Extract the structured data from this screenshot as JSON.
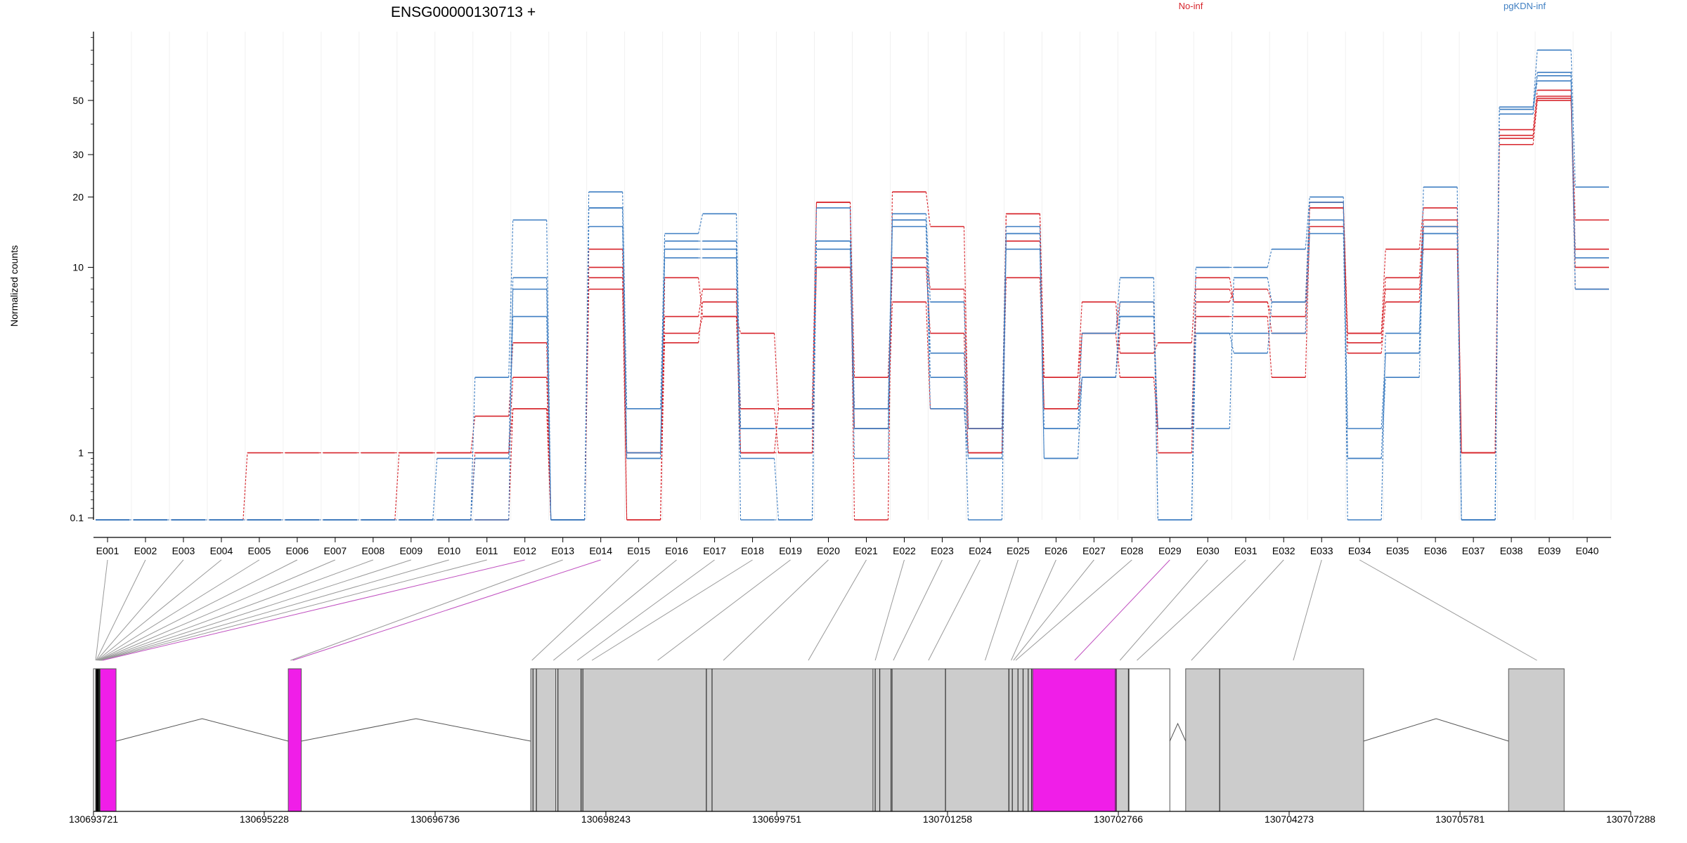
{
  "chart_data": {
    "type": "line",
    "title": "ENSG00000130713 +",
    "ylabel": "Normalized counts",
    "y_scale": "log1p",
    "y_ticks": [
      0.1,
      1,
      10,
      20,
      30,
      50
    ],
    "ylim": [
      0.08,
      95
    ],
    "categories": [
      "E001",
      "E002",
      "E003",
      "E004",
      "E005",
      "E006",
      "E007",
      "E008",
      "E009",
      "E010",
      "E011",
      "E012",
      "E013",
      "E014",
      "E015",
      "E016",
      "E017",
      "E018",
      "E019",
      "E020",
      "E021",
      "E022",
      "E023",
      "E024",
      "E025",
      "E026",
      "E027",
      "E028",
      "E029",
      "E030",
      "E031",
      "E032",
      "E033",
      "E034",
      "E035",
      "E036",
      "E037",
      "E038",
      "E039",
      "E040"
    ],
    "colors": {
      "No-inf": "#d7242b",
      "pgKDN-inf": "#3e7ec2"
    },
    "legend": [
      {
        "name": "No-inf",
        "color": "#d7242b",
        "position": "top-center"
      },
      {
        "name": "pgKDN-inf",
        "color": "#3e7ec2",
        "position": "top-right"
      }
    ],
    "series": [
      {
        "group": "No-inf",
        "values": [
          0.08,
          0.08,
          0.08,
          0.08,
          1,
          1,
          1,
          1,
          1,
          1,
          1.8,
          4.5,
          0.08,
          12,
          0.08,
          5,
          6,
          5,
          2,
          19,
          0.08,
          21,
          15,
          1.5,
          17,
          3,
          7,
          4,
          4.5,
          9,
          7,
          5,
          19,
          5,
          12,
          18,
          1,
          33,
          50,
          16
        ]
      },
      {
        "group": "No-inf",
        "values": [
          0.08,
          0.08,
          0.08,
          0.08,
          0.08,
          0.08,
          0.08,
          0.08,
          1,
          1,
          1,
          2,
          0.08,
          10,
          1,
          4.5,
          7,
          2,
          1,
          19,
          3,
          11,
          8,
          1.5,
          13,
          2,
          5,
          7,
          1,
          7,
          8,
          7,
          18,
          4.5,
          9,
          16,
          1,
          35,
          51,
          12
        ]
      },
      {
        "group": "No-inf",
        "values": [
          0.08,
          0.08,
          0.08,
          0.08,
          0.08,
          0.08,
          0.08,
          0.08,
          0.08,
          0.08,
          1,
          3,
          0.08,
          9,
          1,
          6,
          8,
          1,
          2,
          10,
          2,
          10,
          5,
          1,
          9,
          2,
          3,
          5,
          1.5,
          8,
          7,
          6,
          18,
          4,
          7,
          15,
          1,
          36,
          52,
          10
        ]
      },
      {
        "group": "No-inf",
        "values": [
          0.08,
          0.08,
          0.08,
          0.08,
          0.08,
          0.08,
          0.08,
          0.08,
          0.08,
          0.08,
          0.08,
          2,
          0.08,
          8,
          0.08,
          9,
          6,
          1,
          1,
          10,
          1.5,
          7,
          2,
          1,
          17,
          3,
          5,
          3,
          1.5,
          6,
          6,
          3,
          15,
          5,
          8,
          12,
          1,
          38,
          55,
          8
        ]
      },
      {
        "group": "pgKDN-inf",
        "values": [
          0.08,
          0.08,
          0.08,
          0.08,
          0.08,
          0.08,
          0.08,
          0.08,
          0.08,
          0.08,
          3,
          16,
          0.08,
          21,
          2,
          14,
          17,
          1.5,
          1.5,
          18,
          2,
          17,
          7,
          1.5,
          15,
          1.5,
          5,
          9,
          0.08,
          10,
          10,
          12,
          20,
          1.5,
          4,
          22,
          0.08,
          47,
          80,
          22
        ]
      },
      {
        "group": "pgKDN-inf",
        "values": [
          0.08,
          0.08,
          0.08,
          0.08,
          0.08,
          0.08,
          0.08,
          0.08,
          0.08,
          0.9,
          0.9,
          9,
          0.08,
          18,
          0.9,
          13,
          13,
          0.9,
          0.08,
          12,
          0.9,
          16,
          4,
          0.9,
          14,
          0.9,
          3,
          7,
          0.08,
          5,
          4,
          7,
          16,
          0.9,
          3,
          15,
          0.08,
          46,
          60,
          11
        ]
      },
      {
        "group": "pgKDN-inf",
        "values": [
          0.08,
          0.08,
          0.08,
          0.08,
          0.08,
          0.08,
          0.08,
          0.08,
          0.08,
          0.08,
          0.08,
          8,
          0.08,
          18,
          1,
          12,
          12,
          1.5,
          1.5,
          13,
          1.5,
          16,
          3,
          0.08,
          14,
          1.5,
          3,
          6,
          1.5,
          1.5,
          9,
          7,
          19,
          0.08,
          5,
          14,
          0.08,
          46,
          65,
          8
        ]
      },
      {
        "group": "pgKDN-inf",
        "values": [
          0.08,
          0.08,
          0.08,
          0.08,
          0.08,
          0.08,
          0.08,
          0.08,
          0.08,
          0.08,
          0.9,
          6,
          0.08,
          15,
          0.9,
          11,
          11,
          0.08,
          0.08,
          13,
          1.5,
          15,
          2,
          0.9,
          12,
          0.9,
          3,
          6,
          1.5,
          5,
          5,
          5,
          14,
          0.9,
          4,
          14,
          0.08,
          44,
          63,
          8
        ]
      }
    ],
    "genome_axis": {
      "ticks": [
        "130693721",
        "130695228",
        "130696736",
        "130698243",
        "130699751",
        "130701258",
        "130702766",
        "130704273",
        "130705781",
        "130707288"
      ],
      "tick_values": [
        130693721,
        130695228,
        130696736,
        130698243,
        130699751,
        130701258,
        130702766,
        130704273,
        130705781,
        130707288
      ],
      "exons": [
        {
          "start": 130693721,
          "end": 130693740,
          "fill": "#ffffff"
        },
        {
          "start": 130693740,
          "end": 130693780,
          "fill": "#000000"
        },
        {
          "start": 130693780,
          "end": 130693920,
          "fill": "#f01ee8"
        },
        {
          "start": 130695440,
          "end": 130695555,
          "fill": "#f01ee8"
        },
        {
          "start": 130697580,
          "end": 130697800,
          "fill": "#cccccc"
        },
        {
          "start": 130697800,
          "end": 130698024,
          "fill": "#cccccc"
        },
        {
          "start": 130698024,
          "end": 130699130,
          "fill": "#cccccc"
        },
        {
          "start": 130699130,
          "end": 130700600,
          "fill": "#cccccc"
        },
        {
          "start": 130700600,
          "end": 130700770,
          "fill": "#cccccc"
        },
        {
          "start": 130700770,
          "end": 130701240,
          "fill": "#cccccc"
        },
        {
          "start": 130701240,
          "end": 130701800,
          "fill": "#cccccc"
        },
        {
          "start": 130701800,
          "end": 130702010,
          "fill": "#cccccc"
        },
        {
          "start": 130702010,
          "end": 130702750,
          "fill": "#f01ee8"
        },
        {
          "start": 130702750,
          "end": 130702860,
          "fill": "#cccccc"
        },
        {
          "start": 130702860,
          "end": 130703220,
          "fill": "#ffffff"
        },
        {
          "start": 130703360,
          "end": 130703660,
          "fill": "#cccccc"
        },
        {
          "start": 130703660,
          "end": 130704930,
          "fill": "#cccccc"
        },
        {
          "start": 130706210,
          "end": 130706700,
          "fill": "#cccccc"
        }
      ],
      "exon_bars": [
        130693770,
        130697600,
        130697630,
        130697820,
        130698024,
        130698040,
        130699130,
        130699180,
        130700620,
        130700660,
        130700760,
        130701240,
        130701800,
        130701830,
        130701880,
        130701925,
        130701970,
        130702000,
        130702740,
        130702855,
        130703660
      ]
    },
    "exon_map": [
      {
        "pos": 130693740,
        "color": "#999999"
      },
      {
        "pos": 130693745,
        "color": "#999999"
      },
      {
        "pos": 130693750,
        "color": "#999999"
      },
      {
        "pos": 130693755,
        "color": "#999999"
      },
      {
        "pos": 130693760,
        "color": "#999999"
      },
      {
        "pos": 130693765,
        "color": "#999999"
      },
      {
        "pos": 130693770,
        "color": "#999999"
      },
      {
        "pos": 130693775,
        "color": "#999999"
      },
      {
        "pos": 130693780,
        "color": "#999999"
      },
      {
        "pos": 130693785,
        "color": "#999999"
      },
      {
        "pos": 130693790,
        "color": "#999999"
      },
      {
        "pos": 130693800,
        "color": "#c050c0"
      },
      {
        "pos": 130695460,
        "color": "#999999"
      },
      {
        "pos": 130695480,
        "color": "#c050c0"
      },
      {
        "pos": 130697590,
        "color": "#999999"
      },
      {
        "pos": 130697780,
        "color": "#999999"
      },
      {
        "pos": 130697990,
        "color": "#999999"
      },
      {
        "pos": 130698120,
        "color": "#999999"
      },
      {
        "pos": 130698700,
        "color": "#999999"
      },
      {
        "pos": 130699280,
        "color": "#999999"
      },
      {
        "pos": 130700030,
        "color": "#999999"
      },
      {
        "pos": 130700620,
        "color": "#999999"
      },
      {
        "pos": 130700780,
        "color": "#999999"
      },
      {
        "pos": 130701090,
        "color": "#999999"
      },
      {
        "pos": 130701590,
        "color": "#999999"
      },
      {
        "pos": 130701820,
        "color": "#999999"
      },
      {
        "pos": 130701840,
        "color": "#999999"
      },
      {
        "pos": 130701860,
        "color": "#999999"
      },
      {
        "pos": 130702380,
        "color": "#c050c0"
      },
      {
        "pos": 130702780,
        "color": "#999999"
      },
      {
        "pos": 130702930,
        "color": "#999999"
      },
      {
        "pos": 130703410,
        "color": "#999999"
      },
      {
        "pos": 130704310,
        "color": "#999999"
      },
      {
        "pos": 130706460,
        "color": "#999999"
      }
    ]
  }
}
